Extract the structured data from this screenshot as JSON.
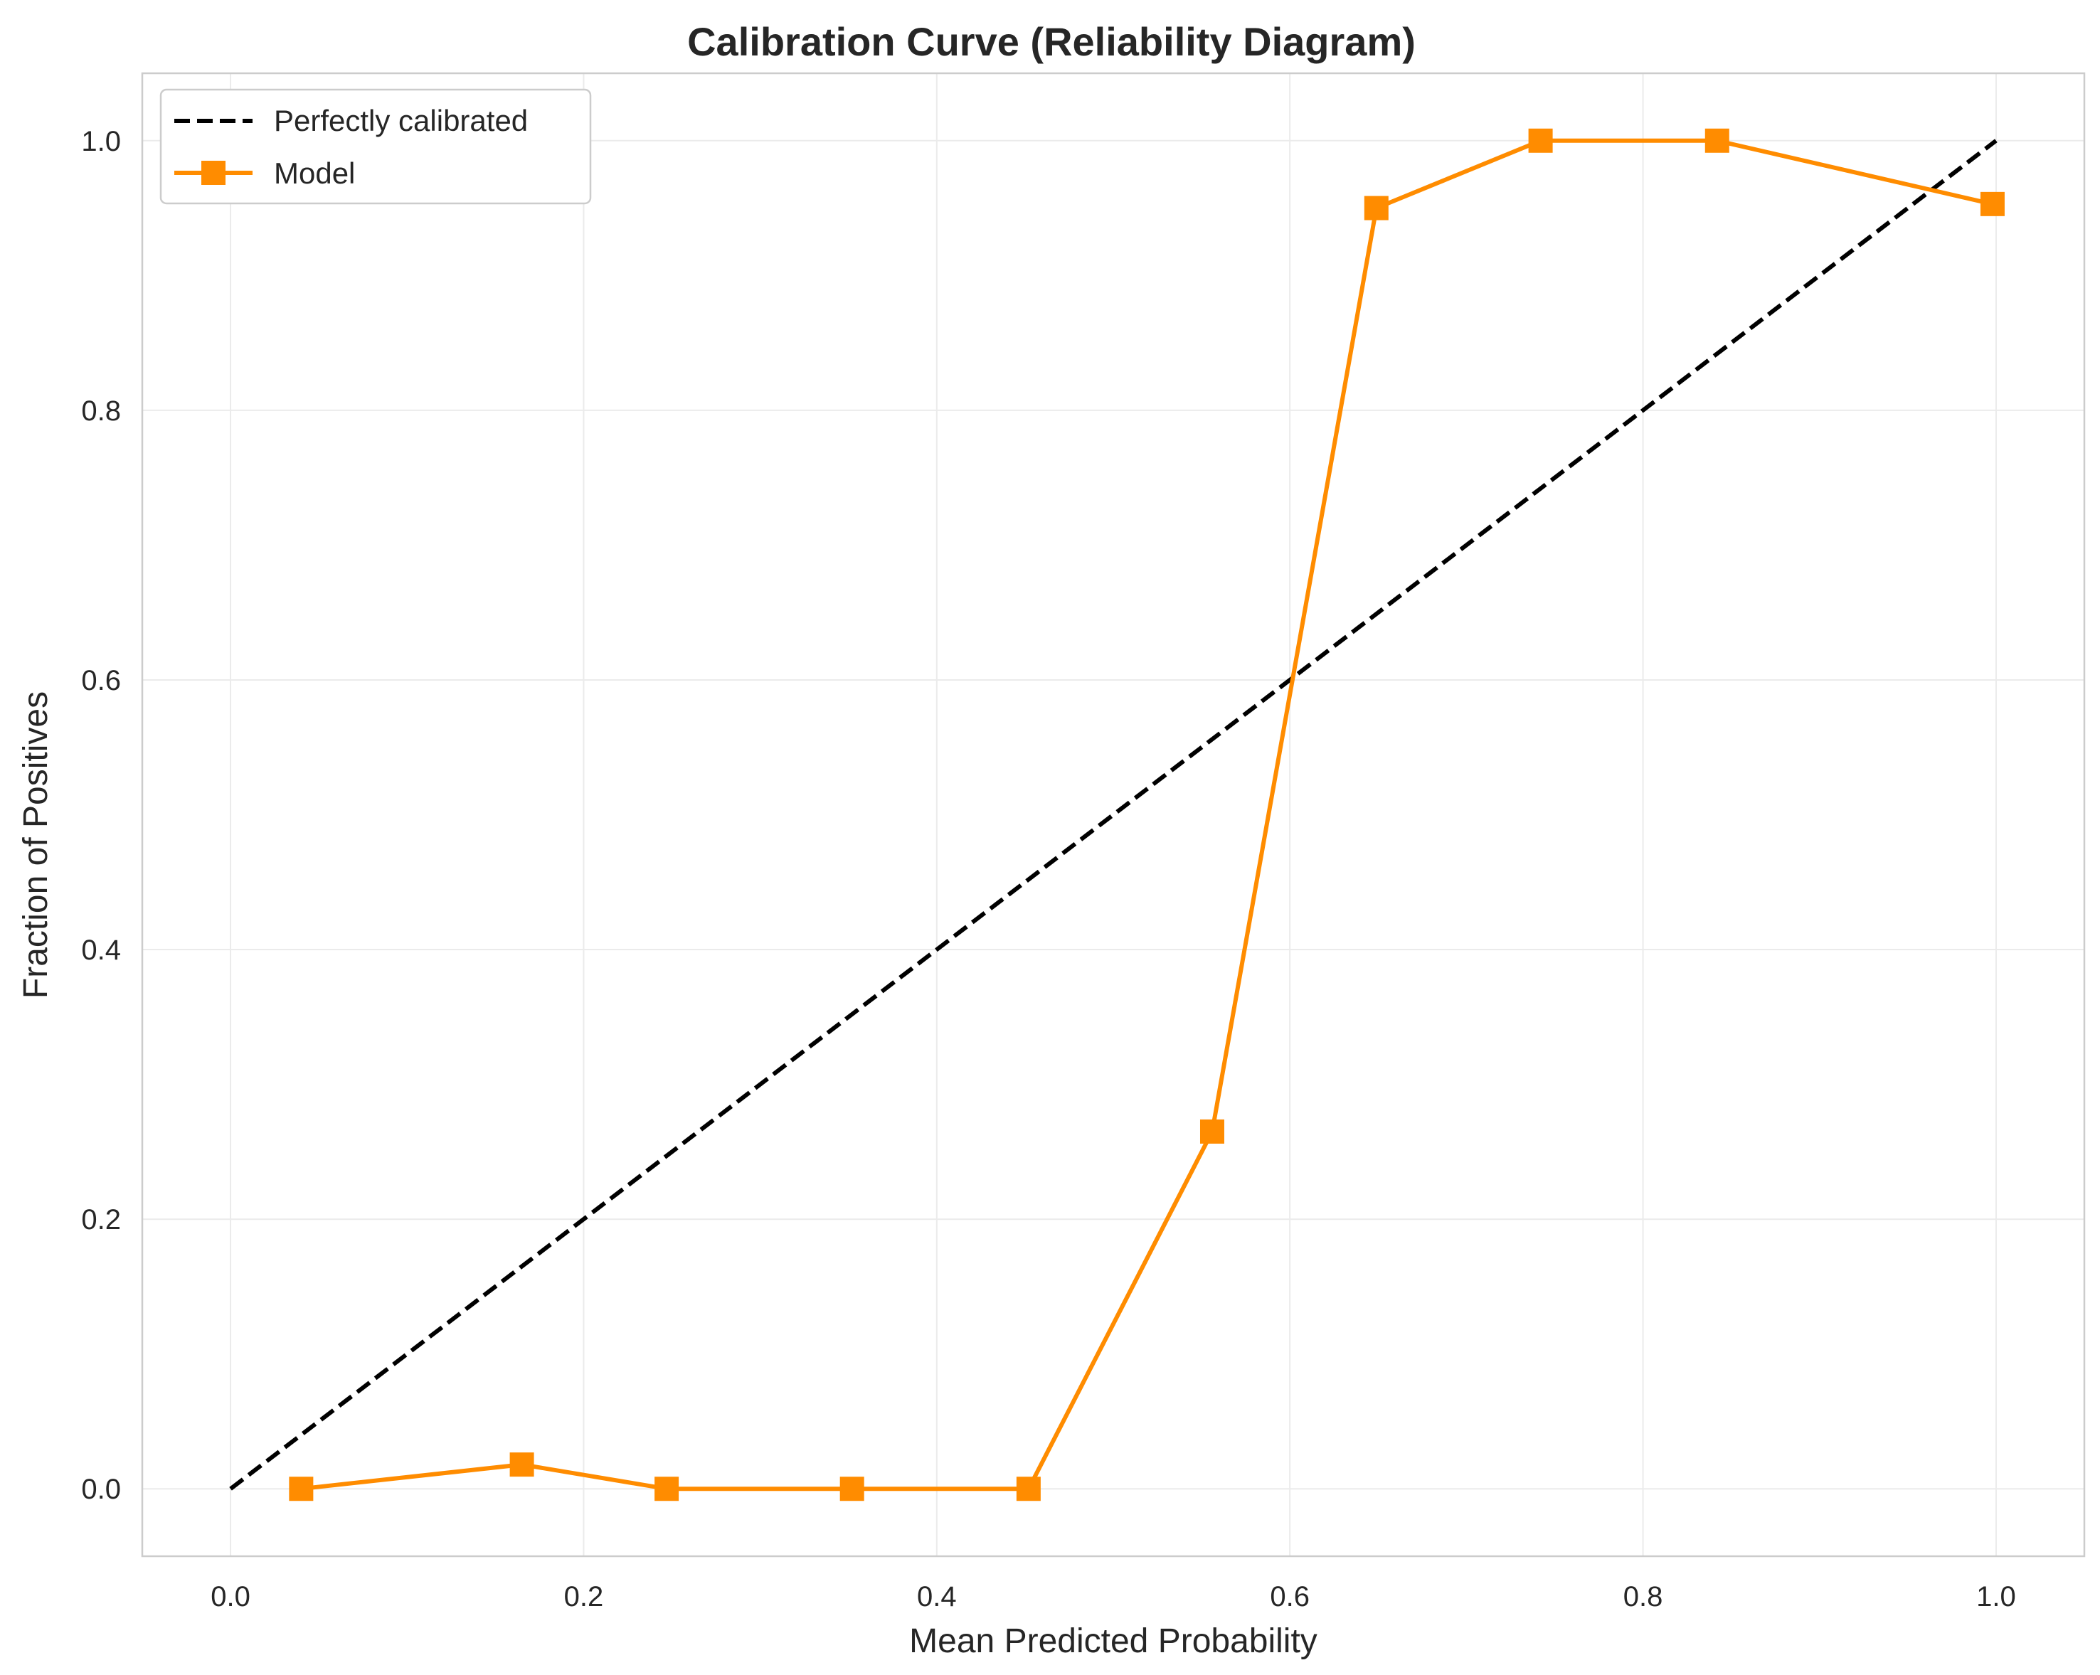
{
  "chart_data": {
    "type": "line",
    "title": "Calibration Curve (Reliability Diagram)",
    "xlabel": "Mean Predicted Probability",
    "ylabel": "Fraction of Positives",
    "xlim": [
      -0.05,
      1.05
    ],
    "ylim": [
      -0.05,
      1.05
    ],
    "xticks": [
      0.0,
      0.2,
      0.4,
      0.6,
      0.8,
      1.0
    ],
    "yticks": [
      0.0,
      0.2,
      0.4,
      0.6,
      0.8,
      1.0
    ],
    "xtick_labels": [
      "0.0",
      "0.2",
      "0.4",
      "0.6",
      "0.8",
      "1.0"
    ],
    "ytick_labels": [
      "0.0",
      "0.2",
      "0.4",
      "0.6",
      "0.8",
      "1.0"
    ],
    "grid": true,
    "legend_position": "top-left",
    "series": [
      {
        "name": "Perfectly calibrated",
        "style": "dashed",
        "color": "#000000",
        "marker": "none",
        "x": [
          0.0,
          1.0
        ],
        "y": [
          0.0,
          1.0
        ]
      },
      {
        "name": "Model",
        "style": "solid",
        "color": "#ff8c00",
        "marker": "square",
        "x": [
          0.04,
          0.165,
          0.247,
          0.352,
          0.452,
          0.556,
          0.649,
          0.742,
          0.842,
          0.998
        ],
        "y": [
          0.0,
          0.018,
          0.0,
          0.0,
          0.0,
          0.265,
          0.95,
          1.0,
          1.0,
          0.953
        ]
      }
    ]
  }
}
